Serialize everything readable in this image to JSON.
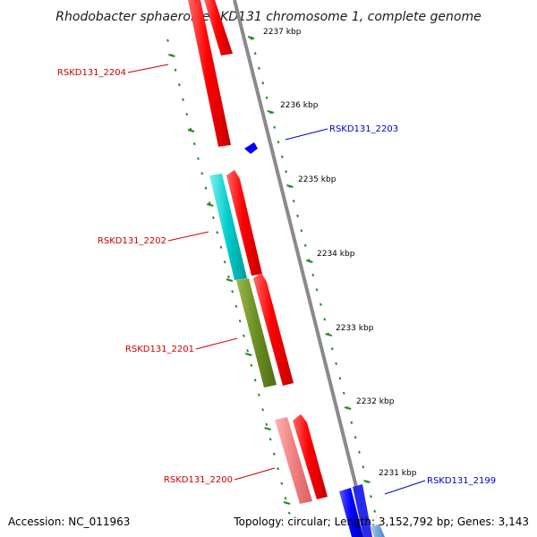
{
  "title": "Rhodobacter sphaeroides KD131 chromosome 1, complete genome",
  "ticks": [
    "2237 kbp",
    "2236 kbp",
    "2235 kbp",
    "2234 kbp",
    "2233 kbp",
    "2232 kbp",
    "2231 kbp"
  ],
  "genes": [
    {
      "label": "RSKD131_2204",
      "strand": "minus",
      "color": "#cc0000"
    },
    {
      "label": "RSKD131_2203",
      "strand": "plus",
      "color": "#0000cc"
    },
    {
      "label": "RSKD131_2202",
      "strand": "minus",
      "color": "#cc0000"
    },
    {
      "label": "RSKD131_2201",
      "strand": "minus",
      "color": "#cc0000"
    },
    {
      "label": "RSKD131_2200",
      "strand": "minus",
      "color": "#cc0000"
    },
    {
      "label": "RSKD131_2199",
      "strand": "plus",
      "color": "#0000cc"
    }
  ],
  "colors": {
    "cds": "#ff0000",
    "plus_feature": "#0000ff",
    "cyan_feature": "#00cccc",
    "olive_feature": "#6b8e23",
    "pink_feature": "#f08080",
    "backbone": "#888888",
    "ruler": "#228b22"
  },
  "footer": {
    "accession": "Accession: NC_011963",
    "stats": "Topology: circular; Length: 3,152,792 bp; Genes: 3,143"
  }
}
